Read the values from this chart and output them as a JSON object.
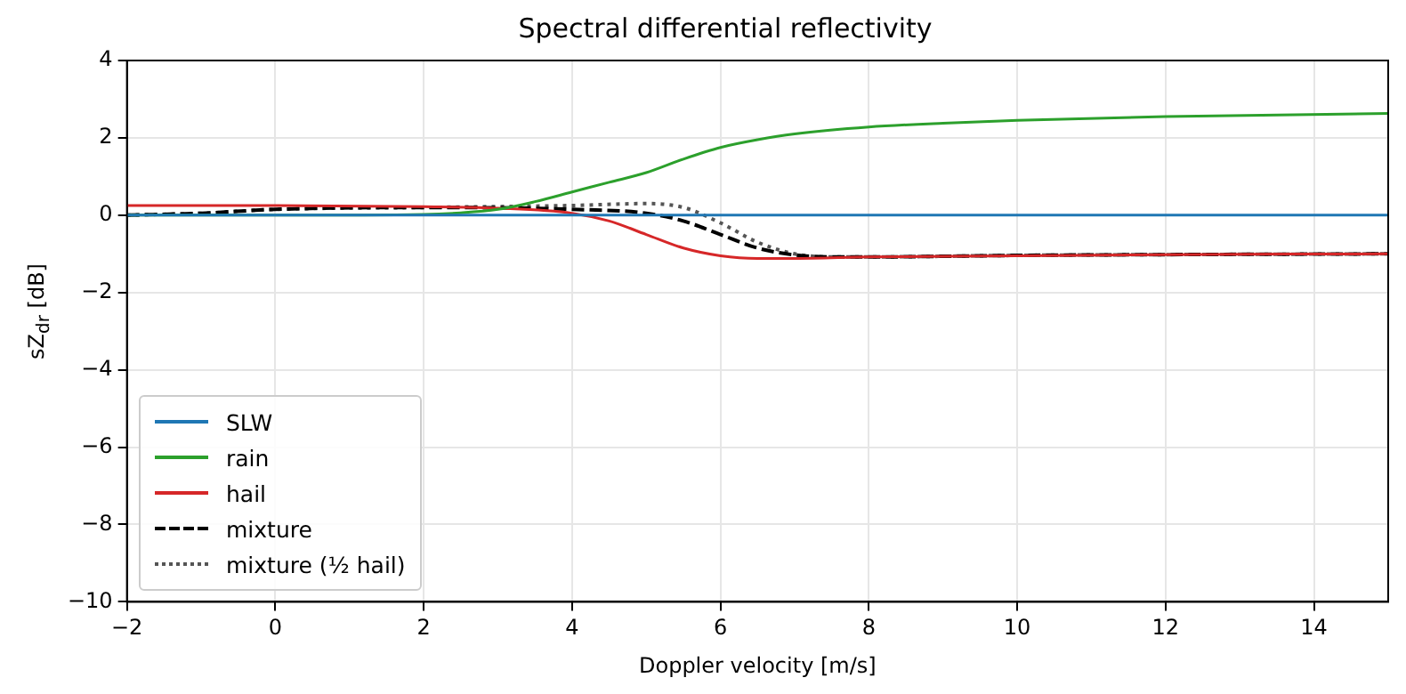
{
  "chart_data": {
    "type": "line",
    "title": "Spectral differential reflectivity",
    "xlabel": "Doppler velocity [m/s]",
    "ylabel": "sZ$_{dr}$ [dB]",
    "xlim": [
      -2,
      15
    ],
    "ylim": [
      -10,
      4
    ],
    "xticks": [
      -2,
      0,
      2,
      4,
      6,
      8,
      10,
      12,
      14
    ],
    "yticks": [
      -10,
      -8,
      -6,
      -4,
      -2,
      0,
      2,
      4
    ],
    "grid": true,
    "legend": "bottom left",
    "series": [
      {
        "name": "SLW",
        "color": "#1f77b4",
        "line_style": "solid",
        "x": [
          -2,
          15
        ],
        "values": [
          0,
          0
        ]
      },
      {
        "name": "rain",
        "color": "#2ca02c",
        "line_style": "solid",
        "x": [
          -2,
          0,
          2,
          2.5,
          3,
          3.5,
          4,
          4.5,
          5,
          5.5,
          6,
          6.5,
          7,
          8,
          9,
          10,
          12,
          15
        ],
        "values": [
          0,
          0,
          0.02,
          0.06,
          0.15,
          0.35,
          0.6,
          0.85,
          1.1,
          1.45,
          1.75,
          1.95,
          2.1,
          2.28,
          2.38,
          2.45,
          2.55,
          2.63
        ]
      },
      {
        "name": "hail",
        "color": "#d62728",
        "line_style": "solid",
        "x": [
          -2,
          0,
          2,
          3,
          4,
          4.5,
          5,
          5.5,
          6,
          6.5,
          7,
          8,
          10,
          12,
          15
        ],
        "values": [
          0.25,
          0.25,
          0.22,
          0.18,
          0.05,
          -0.15,
          -0.5,
          -0.85,
          -1.05,
          -1.12,
          -1.12,
          -1.08,
          -1.05,
          -1.02,
          -1.0
        ]
      },
      {
        "name": "mixture",
        "color": "#000000",
        "line_style": "dashed",
        "x": [
          -2,
          -1,
          0,
          2,
          4,
          5,
          5.5,
          6,
          6.5,
          7,
          7.5,
          8,
          10,
          12,
          15
        ],
        "values": [
          0,
          0.05,
          0.15,
          0.2,
          0.15,
          0.05,
          -0.15,
          -0.5,
          -0.85,
          -1.03,
          -1.08,
          -1.08,
          -1.04,
          -1.02,
          -1.0
        ]
      },
      {
        "name": "mixture (½ hail)",
        "color": "#555555",
        "line_style": "dotted",
        "x": [
          -2,
          -1,
          0,
          2,
          4,
          5,
          5.5,
          6,
          6.5,
          7,
          7.5,
          8,
          10,
          12,
          15
        ],
        "values": [
          0,
          0.05,
          0.15,
          0.2,
          0.25,
          0.3,
          0.2,
          -0.2,
          -0.7,
          -1.0,
          -1.08,
          -1.08,
          -1.04,
          -1.02,
          -1.0
        ]
      }
    ]
  }
}
